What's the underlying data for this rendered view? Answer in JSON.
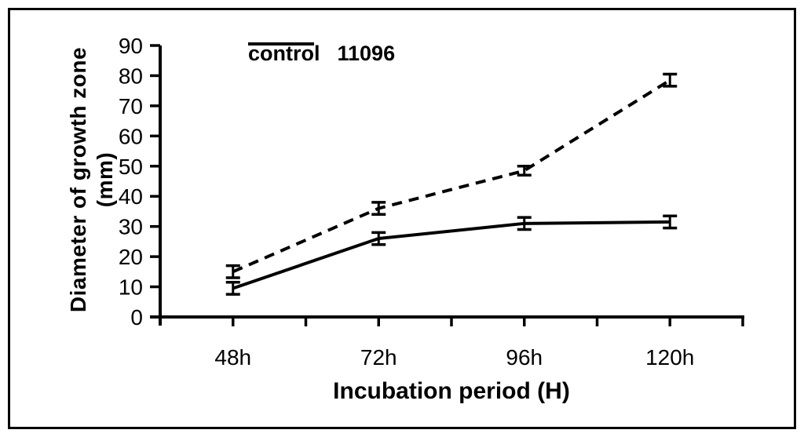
{
  "frame": {
    "background_color": "#ffffff",
    "border_color": "#000000",
    "line_color": "#000000"
  },
  "chart_data": {
    "type": "line",
    "categories": [
      "48h",
      "72h",
      "96h",
      "120h"
    ],
    "series": [
      {
        "name": "control",
        "style": "dashed",
        "values": [
          15,
          36,
          48.5,
          78.5
        ],
        "errors": [
          2,
          2,
          1.5,
          2
        ]
      },
      {
        "name": "11096",
        "style": "solid",
        "values": [
          9.5,
          26,
          31,
          31.5
        ],
        "errors": [
          2,
          2,
          2,
          2
        ]
      }
    ],
    "title": "",
    "xlabel": "Incubation period (H)",
    "ylabel": "Diameter of growth zone (mm)",
    "ylim": [
      0,
      90
    ],
    "ytick_step": 10,
    "grid": false,
    "legend_position": "top-center",
    "error_bars": true
  }
}
